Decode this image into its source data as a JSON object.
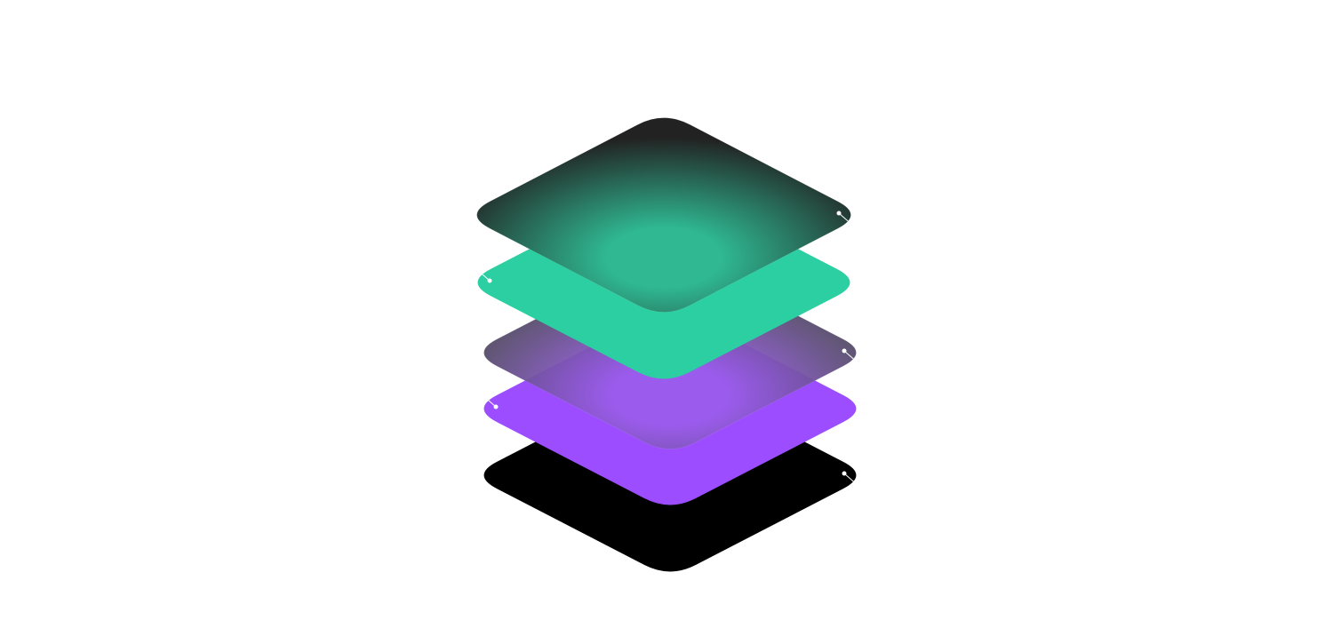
{
  "illustration": {
    "layers": [
      {
        "id": "layer-black-bottom",
        "colors": [
          "#000000",
          "#000000"
        ],
        "style": "solid",
        "marker": "right"
      },
      {
        "id": "layer-purple-solid",
        "colors": [
          "#9b4dff",
          "#9b4dff"
        ],
        "style": "solid",
        "marker": "left"
      },
      {
        "id": "layer-purple-glow",
        "colors": [
          "#9b5cec",
          "#4a4a52"
        ],
        "style": "glow",
        "marker": "right"
      },
      {
        "id": "layer-green-solid",
        "colors": [
          "#2ccfa2",
          "#2ccfa2"
        ],
        "style": "solid",
        "marker": "left"
      },
      {
        "id": "layer-green-glow",
        "colors": [
          "#2fb892",
          "#222222"
        ],
        "style": "glow",
        "marker": "right"
      }
    ],
    "marker_color": "#ffffff"
  }
}
